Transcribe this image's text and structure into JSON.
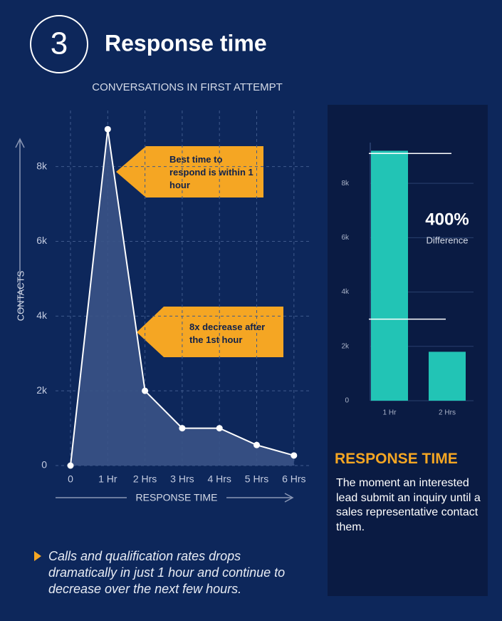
{
  "header": {
    "number": "3",
    "title": "Response time"
  },
  "chart_data": [
    {
      "type": "area",
      "title": "CONVERSATIONS IN FIRST ATTEMPT",
      "x_label": "RESPONSE TIME",
      "y_label": "CONTACTS",
      "categories": [
        "0",
        "1 Hr",
        "2 Hrs",
        "3 Hrs",
        "4 Hrs",
        "5 Hrs",
        "6 Hrs"
      ],
      "values": [
        0,
        9000,
        2000,
        1000,
        1000,
        550,
        270
      ],
      "color": "#ffffff",
      "fill": "#3a5386",
      "ylim": [
        0,
        9500
      ],
      "yticks": [
        0,
        {
          "value": 2000,
          "label": "2k"
        },
        {
          "value": 4000,
          "label": "4k"
        },
        {
          "value": 6000,
          "label": "6k"
        },
        {
          "value": 8000,
          "label": "8k"
        }
      ],
      "grid": true,
      "annotations": [
        "Best time to respond is within 1 hour",
        "8x decrease after the 1st hour"
      ]
    },
    {
      "type": "bar",
      "categories": [
        "1 Hr",
        "2 Hrs"
      ],
      "values": [
        9200,
        1800
      ],
      "color": "#22c4b5",
      "ylim": [
        0,
        9500
      ],
      "yticks": [
        0,
        {
          "value": 2000,
          "label": "2k"
        },
        {
          "value": 4000,
          "label": "4k"
        },
        {
          "value": 6000,
          "label": "6k"
        },
        {
          "value": 8000,
          "label": "8k"
        }
      ],
      "ref_lines": [
        9100,
        3000
      ],
      "annotation": {
        "value_label": "400%",
        "label": "Difference"
      }
    }
  ],
  "sidebar": {
    "heading": "RESPONSE TIME",
    "text": "The moment an interested lead submit an inquiry until a sales representative contact them."
  },
  "footnote": "Calls and qualification rates drops dramatically in just 1 hour and continue to decrease over the next few hours."
}
